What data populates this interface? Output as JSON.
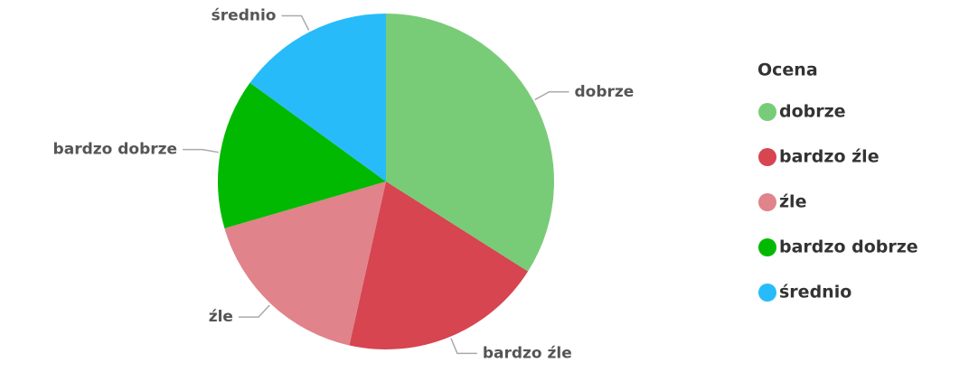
{
  "chart_data": {
    "type": "pie",
    "legend_title": "Ocena",
    "categories": [
      "dobrze",
      "bardzo źle",
      "źle",
      "bardzo dobrze",
      "średnio"
    ],
    "values": [
      34,
      19.5,
      17,
      14.5,
      15
    ],
    "colors": [
      "#79cc77",
      "#d64550",
      "#e0838a",
      "#02b901",
      "#27bcf9"
    ],
    "legend": "right"
  }
}
